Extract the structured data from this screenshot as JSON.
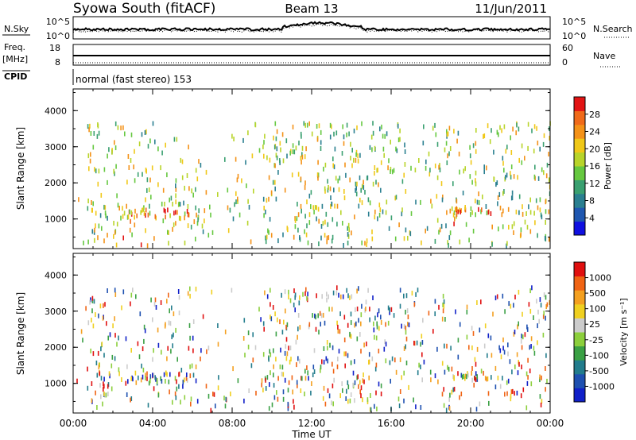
{
  "header": {
    "station": "Syowa South (fitACF)",
    "beam": "Beam 13",
    "date": "11/Jun/2011"
  },
  "summary": {
    "nsky_label": "N.Sky",
    "nsky_ticks": [
      "10^5",
      "10^0"
    ],
    "nsearch_label": "N.Search",
    "freq_label": "Freq.",
    "freq_unit": "[MHz]",
    "freq_ticks": [
      "18",
      "8"
    ],
    "nave_label": "Nave",
    "nave_ticks": [
      "60",
      "0"
    ],
    "cpid_label": "CPID",
    "cpid_text": "normal (fast stereo) 153"
  },
  "xaxis": {
    "label": "Time UT",
    "ticks": [
      "00:00",
      "04:00",
      "08:00",
      "12:00",
      "16:00",
      "20:00",
      "00:00"
    ]
  },
  "colors": {
    "power": [
      "#1010e0",
      "#1f57b0",
      "#2a7f90",
      "#3aa070",
      "#66c840",
      "#b8d42a",
      "#f0c818",
      "#f49218",
      "#f06a1a",
      "#e21414"
    ],
    "velocity": [
      "#1020c8",
      "#1e50b0",
      "#227c8c",
      "#3aa044",
      "#8ccf3c",
      "#cccccc",
      "#f0d020",
      "#f4a020",
      "#f06414",
      "#e01010"
    ]
  },
  "chart_data": [
    {
      "type": "heatmap",
      "title": "",
      "xlabel": "Time UT",
      "ylabel": "Slant Range [km]",
      "xlim": [
        "00:00",
        "24:00"
      ],
      "ylim": [
        180,
        4600
      ],
      "yticks": [
        "1000",
        "2000",
        "3000",
        "4000"
      ],
      "colorbar_label": "Power [dB]",
      "colorbar_ticks": [
        "28",
        "24",
        "20",
        "16",
        "12",
        "8",
        "4"
      ],
      "value_range": [
        0,
        30
      ]
    },
    {
      "type": "heatmap",
      "title": "",
      "xlabel": "Time UT",
      "ylabel": "Slant Range [km]",
      "xlim": [
        "00:00",
        "24:00"
      ],
      "ylim": [
        180,
        4600
      ],
      "yticks": [
        "1000",
        "2000",
        "3000",
        "4000"
      ],
      "colorbar_label": "Velocity [m s⁻¹]",
      "colorbar_ticks": [
        "1000",
        "500",
        "100",
        "25",
        "-25",
        "-100",
        "-500",
        "-1000"
      ],
      "value_range": [
        -1000,
        1000
      ]
    }
  ]
}
